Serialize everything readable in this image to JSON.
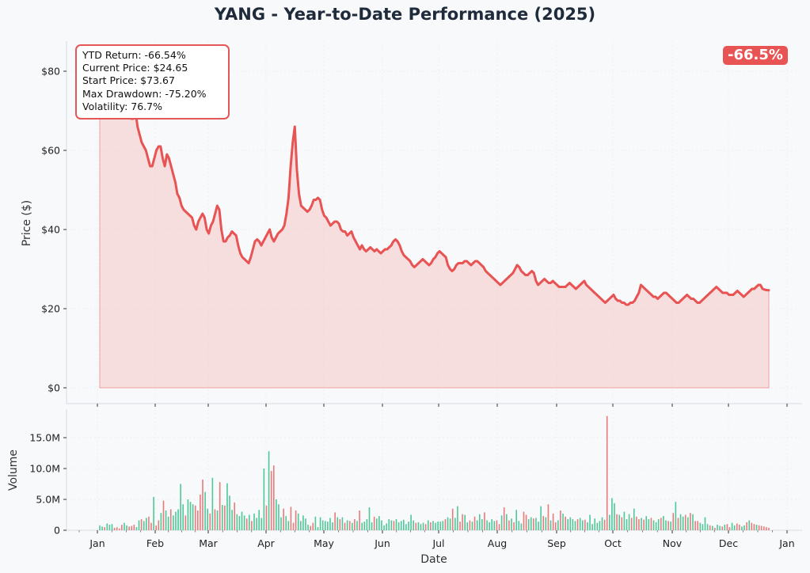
{
  "chart_data": {
    "title": "YANG - Year-to-Date Performance (2025)",
    "type": "line",
    "colors": {
      "price_line": "#e85353",
      "price_fill": "#f4b3b3",
      "volume_up": "#4fc796",
      "volume_down": "#e87a7a",
      "background": "#f7f9fb"
    },
    "price_panel": {
      "ylabel": "Price ($)",
      "y_ticks": [
        "$0",
        "$20",
        "$40",
        "$60",
        "$80"
      ],
      "ylim": [
        -2,
        87
      ],
      "series": {
        "values": [
          73.67,
          76,
          78,
          79,
          80,
          78,
          77,
          76,
          75,
          74,
          75,
          76,
          74,
          72,
          70,
          68,
          68,
          70,
          66,
          64,
          62,
          61,
          60,
          58,
          56,
          56,
          58,
          60,
          61,
          61,
          58,
          56,
          59,
          58,
          56,
          54,
          52,
          49,
          48,
          46,
          45,
          44.5,
          44,
          43.5,
          43,
          41,
          40,
          42,
          43,
          44,
          43,
          40,
          39,
          41,
          42,
          44,
          46,
          45,
          40,
          37,
          37,
          38,
          38.5,
          39.5,
          39,
          38.5,
          36,
          34,
          33,
          32.5,
          32,
          31.5,
          33,
          35,
          37,
          37.5,
          37,
          36,
          37,
          38,
          39,
          40,
          38,
          37,
          38,
          39,
          39.5,
          40,
          41,
          44,
          48,
          56,
          62,
          66,
          55,
          49,
          46,
          45.5,
          45,
          44.5,
          45,
          46,
          47.5,
          47.5,
          48,
          47.5,
          45,
          43.5,
          43,
          42,
          41,
          41.5,
          42,
          42,
          41.5,
          40,
          39.5,
          39.5,
          38.5,
          39,
          39.5,
          38,
          37,
          36,
          35,
          36,
          35,
          34.5,
          35,
          35.5,
          35,
          34.5,
          35,
          34.5,
          34,
          34.5,
          35,
          35,
          35.5,
          36,
          37,
          37.5,
          37,
          36,
          34.5,
          33.5,
          33,
          32.5,
          32,
          31,
          30.5,
          31,
          31.5,
          32,
          32.5,
          32,
          31.5,
          31,
          31.5,
          32.5,
          33,
          34,
          34.5,
          34,
          33.5,
          33,
          31,
          30,
          29.5,
          30,
          31,
          31.5,
          31.5,
          31.5,
          32,
          32,
          31.5,
          31,
          31.5,
          32,
          32,
          31.5,
          31,
          30.5,
          29.5,
          29,
          28.5,
          28,
          27.5,
          27,
          26.5,
          26,
          26.5,
          27,
          27.5,
          28,
          28.5,
          29,
          30,
          31,
          30.5,
          29.5,
          29,
          28.5,
          28.5,
          29,
          29.5,
          29,
          27,
          26,
          26.5,
          27,
          27.5,
          27,
          26.5,
          26.5,
          27,
          26.5,
          26,
          25.5,
          25.5,
          25.5,
          25.5,
          26,
          26.5,
          26,
          25.5,
          25,
          25.5,
          26,
          26.5,
          27,
          26,
          25.5,
          25,
          24.5,
          24,
          23.5,
          23,
          22.5,
          22,
          21.5,
          22,
          22.5,
          23,
          23.5,
          22.5,
          22,
          22,
          21.5,
          21.5,
          21,
          21,
          21.5,
          21.5,
          22,
          23,
          24,
          26,
          25.5,
          25,
          24.5,
          24,
          23.5,
          23,
          23,
          22.5,
          23,
          23.5,
          24,
          24,
          23.5,
          23,
          22.5,
          22,
          21.5,
          21.5,
          22,
          22.5,
          23,
          23.5,
          23,
          22.5,
          22.5,
          22,
          21.5,
          21.5,
          22,
          22.5,
          23,
          23.5,
          24,
          24.5,
          25,
          25.5,
          25,
          24.5,
          24,
          24,
          24,
          23.5,
          23.5,
          23.5,
          24,
          24.5,
          24,
          23.5,
          23,
          23.5,
          24,
          24.5,
          25,
          25,
          25.5,
          26,
          26,
          25,
          24.8,
          24.7,
          24.65
        ]
      },
      "stats": {
        "ytd_return": "YTD Return: -66.54%",
        "current_price": "Current Price: $24.65",
        "start_price": "Start Price: $73.67",
        "max_drawdown": "Max Drawdown: -75.20%",
        "volatility": "Volatility: 76.7%"
      },
      "return_badge": "-66.5%"
    },
    "volume_panel": {
      "ylabel": "Volume",
      "y_ticks": [
        "0",
        "5.0M",
        "10.0M",
        "15.0M"
      ],
      "ylim": [
        0,
        19.5
      ],
      "values": [
        0.8,
        0.6,
        0.5,
        1.1,
        0.9,
        1.0,
        0.4,
        0.5,
        0.3,
        0.9,
        1.2,
        0.8,
        0.6,
        0.7,
        0.9,
        0.5,
        1.6,
        1.8,
        1.5,
        2.0,
        2.2,
        1.2,
        5.4,
        0.8,
        1.6,
        2.8,
        4.8,
        3.2,
        2.2,
        3.4,
        2.4,
        3.0,
        3.4,
        7.5,
        4.2,
        2.4,
        5.0,
        4.6,
        4.2,
        4.0,
        3.2,
        5.8,
        8.2,
        6.2,
        3.5,
        2.7,
        8.5,
        3.4,
        3.2,
        7.8,
        4.1,
        4.0,
        7.6,
        5.6,
        3.3,
        4.5,
        2.6,
        2.3,
        3.0,
        2.4,
        1.9,
        2.5,
        1.5,
        2.7,
        2.0,
        3.3,
        2.0,
        10.0,
        4.0,
        12.8,
        9.6,
        10.5,
        5.0,
        4.2,
        2.1,
        3.5,
        2.3,
        1.5,
        3.8,
        1.2,
        3.2,
        2.7,
        1.5,
        2.4,
        1.9,
        0.9,
        0.7,
        1.2,
        2.2,
        0.5,
        2.1,
        1.6,
        1.5,
        1.4,
        2.0,
        1.3,
        2.9,
        2.1,
        1.8,
        2.1,
        1.2,
        1.6,
        1.5,
        1.2,
        1.8,
        1.5,
        3.2,
        1.2,
        1.4,
        1.8,
        3.7,
        1.3,
        2.2,
        1.9,
        2.3,
        1.6,
        0.8,
        1.1,
        1.8,
        1.6,
        1.5,
        1.8,
        1.3,
        1.5,
        1.7,
        1.0,
        1.4,
        2.5,
        1.6,
        1.2,
        1.3,
        1.0,
        1.2,
        1.0,
        1.6,
        1.3,
        1.5,
        1.2,
        1.4,
        1.4,
        1.5,
        1.8,
        2.1,
        1.9,
        3.5,
        2.0,
        3.9,
        1.4,
        2.6,
        2.5,
        1.3,
        1.6,
        1.4,
        2.2,
        1.6,
        2.6,
        1.8,
        2.9,
        1.6,
        1.3,
        1.8,
        1.5,
        1.6,
        1.0,
        2.4,
        3.7,
        2.6,
        1.6,
        1.9,
        1.3,
        3.3,
        1.5,
        1.1,
        3.0,
        2.5,
        1.8,
        2.1,
        1.9,
        2.0,
        1.4,
        3.9,
        2.3,
        2.1,
        4.2,
        1.6,
        2.7,
        1.3,
        1.6,
        3.2,
        2.7,
        2.2,
        1.8,
        2.1,
        1.8,
        1.5,
        1.8,
        2.0,
        1.6,
        1.7,
        1.3,
        2.5,
        1.0,
        1.9,
        1.2,
        1.5,
        2.1,
        1.7,
        18.5,
        2.5,
        5.2,
        4.4,
        2.6,
        2.5,
        2.1,
        3.0,
        1.8,
        2.6,
        2.0,
        3.5,
        2.2,
        1.8,
        2.0,
        1.7,
        2.3,
        1.8,
        2.0,
        1.6,
        1.3,
        1.8,
        2.0,
        2.3,
        1.6,
        1.5,
        1.4,
        2.8,
        4.6,
        2.0,
        2.6,
        2.2,
        2.5,
        2.1,
        2.8,
        2.6,
        1.5,
        1.5,
        1.2,
        1.0,
        2.1,
        1.0,
        0.8,
        0.7,
        0.4,
        0.9,
        0.7,
        0.6,
        0.9,
        1.0,
        0.5,
        1.2,
        0.8,
        1.1,
        0.9,
        0.6,
        0.8,
        1.3,
        1.6,
        1.2,
        1.0,
        0.9,
        0.8,
        0.7,
        0.6,
        0.5,
        0.4
      ],
      "up": [
        1,
        1,
        0,
        1,
        1,
        1,
        0,
        0,
        0,
        0,
        1,
        1,
        0,
        0,
        0,
        1,
        1,
        0,
        1,
        1,
        0,
        0,
        1,
        0,
        0,
        1,
        0,
        1,
        1,
        0,
        1,
        1,
        1,
        1,
        1,
        0,
        1,
        1,
        1,
        0,
        0,
        0,
        0,
        1,
        1,
        0,
        1,
        0,
        1,
        0,
        1,
        0,
        1,
        1,
        1,
        0,
        1,
        1,
        1,
        1,
        0,
        1,
        0,
        1,
        1,
        1,
        1,
        1,
        0,
        1,
        0,
        0,
        1,
        1,
        1,
        0,
        1,
        1,
        0,
        0,
        0,
        1,
        1,
        1,
        1,
        1,
        0,
        0,
        1,
        1,
        1,
        1,
        1,
        1,
        1,
        1,
        0,
        1,
        0,
        1,
        0,
        1,
        0,
        1,
        0,
        1,
        0,
        1,
        1,
        1,
        1,
        1,
        0,
        1,
        1,
        1,
        1,
        1,
        1,
        1,
        0,
        1,
        1,
        1,
        1,
        1,
        1,
        1,
        1,
        0,
        1,
        1,
        1,
        0,
        1,
        0,
        1,
        1,
        1,
        1,
        1,
        0,
        1,
        1,
        0,
        1,
        1,
        0,
        0,
        1,
        1,
        0,
        1,
        0,
        1,
        1,
        1,
        0,
        1,
        1,
        1,
        1,
        0,
        0,
        1,
        0,
        1,
        0,
        1,
        0,
        1,
        1,
        1,
        0,
        0,
        1,
        1,
        0,
        1,
        1,
        1,
        0,
        1,
        0,
        1,
        0,
        0,
        1,
        0,
        1,
        0,
        1,
        1,
        1,
        1,
        0,
        1,
        1,
        0,
        1,
        1,
        1,
        1,
        1,
        1,
        1,
        0,
        0,
        1,
        1,
        1,
        0,
        1,
        0,
        1,
        1,
        1,
        0,
        1,
        0,
        0,
        1,
        0,
        1,
        1,
        0,
        1,
        1,
        1,
        0,
        1,
        1,
        0,
        1,
        0,
        1,
        0,
        1,
        1,
        0,
        1,
        0,
        1,
        0,
        0,
        1,
        1,
        1,
        1,
        0,
        1,
        0,
        1,
        1,
        0,
        1,
        0,
        0,
        1,
        1,
        0,
        0,
        1,
        1,
        0,
        1,
        0,
        0,
        1,
        0,
        0,
        0,
        0,
        0,
        0,
        0,
        0,
        0,
        0,
        0,
        0,
        0,
        0,
        0
      ]
    },
    "xlabel": "Date",
    "x_ticks": [
      "Jan",
      "Feb",
      "Mar",
      "Apr",
      "May",
      "Jun",
      "Jul",
      "Aug",
      "Sep",
      "Oct",
      "Nov",
      "Dec",
      "Jan"
    ]
  }
}
